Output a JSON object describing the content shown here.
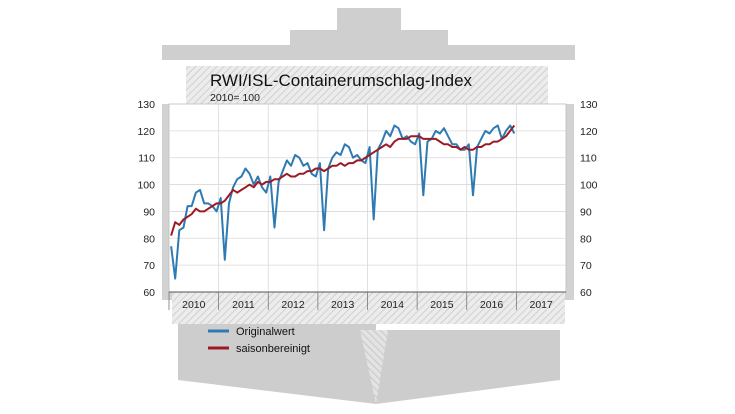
{
  "chart_data": {
    "type": "line",
    "title": "RWI/ISL-Containerumschlag-Index",
    "subtitle": "2010= 100",
    "xlabel": "",
    "ylabel": "",
    "ylim": [
      60,
      130
    ],
    "xlim": [
      "2010-01",
      "2017-12"
    ],
    "yticks": [
      60,
      70,
      80,
      90,
      100,
      110,
      120,
      130
    ],
    "xticks": [
      "2010",
      "2011",
      "2012",
      "2013",
      "2014",
      "2015",
      "2016",
      "2017"
    ],
    "grid": true,
    "legend_position": "bottom-left",
    "series": [
      {
        "name": "Originalwert",
        "color": "#2f7ab2",
        "x": [
          "2010-01",
          "2010-02",
          "2010-03",
          "2010-04",
          "2010-05",
          "2010-06",
          "2010-07",
          "2010-08",
          "2010-09",
          "2010-10",
          "2010-11",
          "2010-12",
          "2011-01",
          "2011-02",
          "2011-03",
          "2011-04",
          "2011-05",
          "2011-06",
          "2011-07",
          "2011-08",
          "2011-09",
          "2011-10",
          "2011-11",
          "2011-12",
          "2012-01",
          "2012-02",
          "2012-03",
          "2012-04",
          "2012-05",
          "2012-06",
          "2012-07",
          "2012-08",
          "2012-09",
          "2012-10",
          "2012-11",
          "2012-12",
          "2013-01",
          "2013-02",
          "2013-03",
          "2013-04",
          "2013-05",
          "2013-06",
          "2013-07",
          "2013-08",
          "2013-09",
          "2013-10",
          "2013-11",
          "2013-12",
          "2014-01",
          "2014-02",
          "2014-03",
          "2014-04",
          "2014-05",
          "2014-06",
          "2014-07",
          "2014-08",
          "2014-09",
          "2014-10",
          "2014-11",
          "2014-12",
          "2015-01",
          "2015-02",
          "2015-03",
          "2015-04",
          "2015-05",
          "2015-06",
          "2015-07",
          "2015-08",
          "2015-09",
          "2015-10",
          "2015-11",
          "2015-12",
          "2016-01",
          "2016-02",
          "2016-03",
          "2016-04",
          "2016-05",
          "2016-06",
          "2016-07",
          "2016-08",
          "2016-09",
          "2016-10",
          "2016-11",
          "2016-12"
        ],
        "values": [
          77,
          65,
          83,
          84,
          92,
          92,
          97,
          98,
          93,
          93,
          92,
          90,
          95,
          72,
          93,
          99,
          102,
          103,
          106,
          104,
          100,
          103,
          99,
          97,
          103,
          84,
          101,
          105,
          109,
          107,
          111,
          110,
          107,
          108,
          104,
          103,
          108,
          83,
          106,
          110,
          112,
          111,
          115,
          114,
          110,
          111,
          109,
          108,
          114,
          87,
          113,
          116,
          120,
          118,
          122,
          121,
          117,
          118,
          116,
          115,
          119,
          96,
          116,
          117,
          120,
          119,
          121,
          118,
          115,
          115,
          113,
          113,
          115,
          96,
          114,
          117,
          120,
          119,
          121,
          122,
          117,
          120,
          122,
          119
        ]
      },
      {
        "name": "saisonbereinigt",
        "color": "#9b1b24",
        "x": [
          "2010-01",
          "2010-02",
          "2010-03",
          "2010-04",
          "2010-05",
          "2010-06",
          "2010-07",
          "2010-08",
          "2010-09",
          "2010-10",
          "2010-11",
          "2010-12",
          "2011-01",
          "2011-02",
          "2011-03",
          "2011-04",
          "2011-05",
          "2011-06",
          "2011-07",
          "2011-08",
          "2011-09",
          "2011-10",
          "2011-11",
          "2011-12",
          "2012-01",
          "2012-02",
          "2012-03",
          "2012-04",
          "2012-05",
          "2012-06",
          "2012-07",
          "2012-08",
          "2012-09",
          "2012-10",
          "2012-11",
          "2012-12",
          "2013-01",
          "2013-02",
          "2013-03",
          "2013-04",
          "2013-05",
          "2013-06",
          "2013-07",
          "2013-08",
          "2013-09",
          "2013-10",
          "2013-11",
          "2013-12",
          "2014-01",
          "2014-02",
          "2014-03",
          "2014-04",
          "2014-05",
          "2014-06",
          "2014-07",
          "2014-08",
          "2014-09",
          "2014-10",
          "2014-11",
          "2014-12",
          "2015-01",
          "2015-02",
          "2015-03",
          "2015-04",
          "2015-05",
          "2015-06",
          "2015-07",
          "2015-08",
          "2015-09",
          "2015-10",
          "2015-11",
          "2015-12",
          "2016-01",
          "2016-02",
          "2016-03",
          "2016-04",
          "2016-05",
          "2016-06",
          "2016-07",
          "2016-08",
          "2016-09",
          "2016-10",
          "2016-11",
          "2016-12"
        ],
        "values": [
          81,
          86,
          85,
          87,
          88,
          89,
          91,
          90,
          90,
          91,
          92,
          93,
          93,
          94,
          96,
          98,
          97,
          98,
          99,
          100,
          99,
          101,
          100,
          101,
          101,
          102,
          102,
          103,
          104,
          103,
          103,
          104,
          104,
          105,
          105,
          106,
          106,
          105,
          106,
          107,
          107,
          108,
          107,
          108,
          108,
          109,
          109,
          110,
          111,
          112,
          113,
          114,
          115,
          114,
          116,
          117,
          117,
          117,
          118,
          118,
          118,
          117,
          117,
          117,
          117,
          116,
          115,
          115,
          114,
          114,
          113,
          114,
          113,
          113,
          114,
          114,
          115,
          115,
          116,
          116,
          117,
          118,
          120,
          122
        ]
      }
    ]
  }
}
